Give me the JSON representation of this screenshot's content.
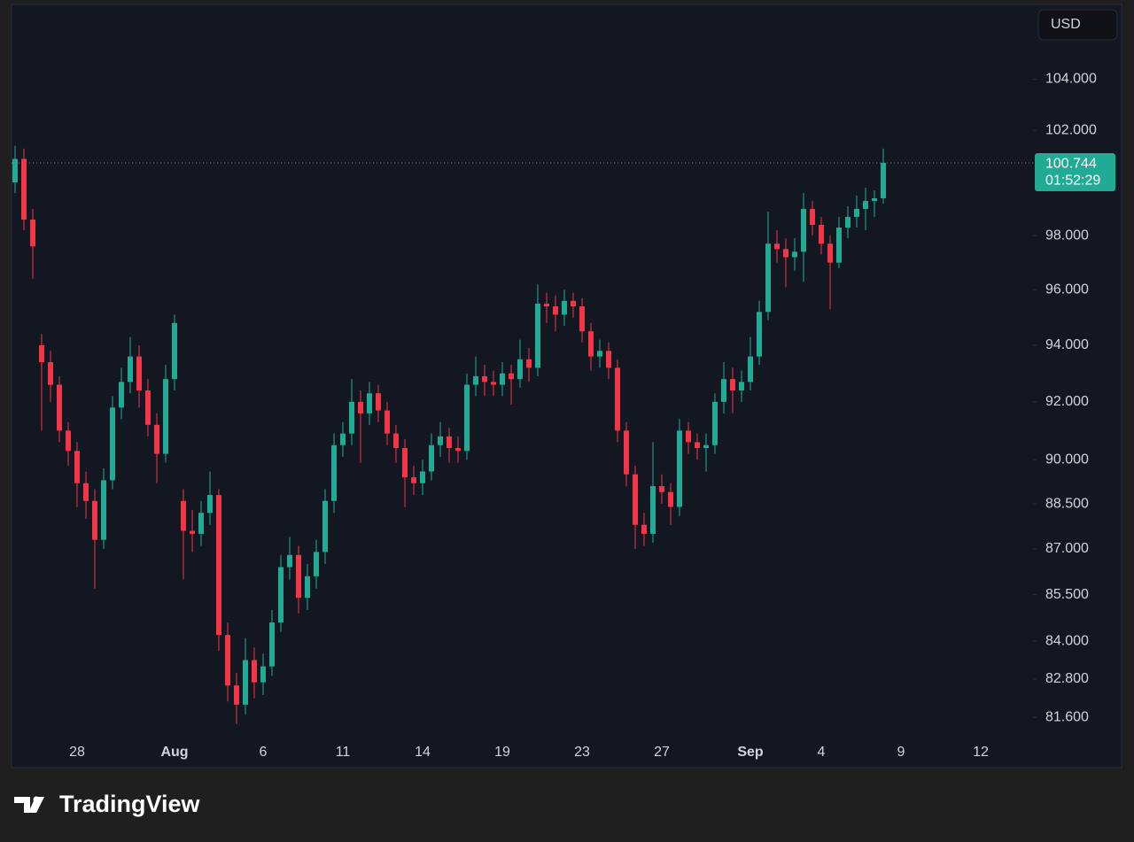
{
  "chart_data": {
    "type": "candlestick",
    "currency": "USD",
    "countdown": "01:52:29",
    "brand": "TradingView",
    "log_scale": true,
    "up_color": "#22ab94",
    "down_color": "#f23645",
    "ylim": [
      80.9,
      107.0
    ],
    "yticks": [
      {
        "value": 81.6,
        "label": "81.600"
      },
      {
        "value": 82.8,
        "label": "82.800"
      },
      {
        "value": 84,
        "label": "84.000"
      },
      {
        "value": 85.5,
        "label": "85.500"
      },
      {
        "value": 87,
        "label": "87.000"
      },
      {
        "value": 88.5,
        "label": "88.500"
      },
      {
        "value": 90,
        "label": "90.000"
      },
      {
        "value": 92,
        "label": "92.000"
      },
      {
        "value": 94,
        "label": "94.000"
      },
      {
        "value": 96,
        "label": "96.000"
      },
      {
        "value": 98,
        "label": "98.000"
      },
      {
        "value": 102,
        "label": "102.000"
      },
      {
        "value": 104,
        "label": "104.000"
      }
    ],
    "categories": [
      null,
      null,
      null,
      null,
      null,
      null,
      null,
      "28",
      null,
      null,
      null,
      null,
      null,
      null,
      null,
      null,
      null,
      null,
      "Aug",
      null,
      null,
      null,
      null,
      null,
      null,
      null,
      null,
      null,
      "6",
      null,
      null,
      null,
      null,
      null,
      null,
      null,
      null,
      "11",
      null,
      null,
      null,
      null,
      null,
      null,
      null,
      null,
      "14",
      null,
      null,
      null,
      null,
      null,
      null,
      null,
      null,
      "19",
      null,
      null,
      null,
      null,
      null,
      null,
      null,
      null,
      "23",
      null,
      null,
      null,
      null,
      null,
      null,
      null,
      null,
      "27",
      null,
      null,
      null,
      null,
      null,
      null,
      null,
      null,
      null,
      "Sep",
      null,
      null,
      null,
      null,
      null,
      null,
      null,
      "4",
      null,
      null,
      null,
      null,
      null,
      null,
      null,
      null,
      "9",
      null,
      null,
      null,
      null,
      null,
      null,
      null,
      null,
      "12",
      null,
      null,
      null,
      null,
      null
    ],
    "ohlc": [
      [
        100.0,
        101.4,
        99.6,
        100.9
      ],
      [
        100.9,
        101.3,
        98.2,
        98.6
      ],
      [
        98.6,
        99.0,
        96.4,
        97.6
      ],
      [
        94.0,
        94.4,
        91.0,
        93.4
      ],
      [
        93.4,
        93.8,
        92.0,
        92.6
      ],
      [
        92.6,
        92.9,
        90.6,
        91.0
      ],
      [
        91.0,
        91.3,
        89.8,
        90.3
      ],
      [
        90.3,
        90.6,
        88.4,
        89.2
      ],
      [
        89.2,
        89.6,
        88.0,
        88.6
      ],
      [
        88.6,
        89.0,
        85.7,
        87.3
      ],
      [
        87.3,
        89.7,
        87.0,
        89.3
      ],
      [
        89.3,
        92.2,
        89.0,
        91.8
      ],
      [
        91.8,
        93.2,
        91.4,
        92.7
      ],
      [
        92.7,
        94.3,
        92.3,
        93.6
      ],
      [
        93.6,
        94.0,
        91.8,
        92.4
      ],
      [
        92.4,
        92.8,
        90.8,
        91.2
      ],
      [
        91.2,
        91.6,
        89.2,
        90.2
      ],
      [
        90.2,
        93.3,
        89.9,
        92.8
      ],
      [
        92.8,
        95.1,
        92.4,
        94.8
      ],
      [
        88.6,
        89.0,
        86.0,
        87.6
      ],
      [
        87.6,
        88.3,
        86.9,
        87.5
      ],
      [
        87.5,
        88.6,
        87.1,
        88.2
      ],
      [
        88.2,
        89.6,
        87.8,
        88.8
      ],
      [
        88.8,
        89.0,
        83.7,
        84.2
      ],
      [
        84.2,
        84.6,
        82.1,
        82.6
      ],
      [
        82.6,
        83.0,
        81.4,
        82.0
      ],
      [
        82.0,
        84.1,
        81.7,
        83.4
      ],
      [
        83.4,
        83.8,
        82.2,
        82.7
      ],
      [
        82.7,
        83.6,
        82.3,
        83.2
      ],
      [
        83.2,
        85.0,
        82.9,
        84.6
      ],
      [
        84.6,
        86.8,
        84.3,
        86.4
      ],
      [
        86.4,
        87.4,
        86.0,
        86.8
      ],
      [
        86.8,
        87.1,
        84.9,
        85.4
      ],
      [
        85.4,
        86.5,
        85.0,
        86.1
      ],
      [
        86.1,
        87.3,
        85.7,
        86.9
      ],
      [
        86.9,
        89.0,
        86.5,
        88.6
      ],
      [
        88.6,
        90.9,
        88.2,
        90.5
      ],
      [
        90.5,
        91.3,
        90.1,
        90.9
      ],
      [
        90.9,
        92.8,
        90.5,
        92.0
      ],
      [
        92.0,
        92.4,
        89.9,
        91.6
      ],
      [
        91.6,
        92.7,
        91.2,
        92.3
      ],
      [
        92.3,
        92.6,
        91.3,
        91.7
      ],
      [
        91.7,
        92.0,
        90.5,
        90.9
      ],
      [
        90.9,
        91.2,
        89.9,
        90.4
      ],
      [
        90.4,
        90.7,
        88.4,
        89.4
      ],
      [
        89.4,
        89.8,
        88.8,
        89.2
      ],
      [
        89.2,
        90.0,
        88.8,
        89.6
      ],
      [
        89.6,
        90.9,
        89.3,
        90.5
      ],
      [
        90.5,
        91.3,
        90.1,
        90.8
      ],
      [
        90.8,
        91.1,
        89.9,
        90.4
      ],
      [
        90.4,
        90.8,
        89.9,
        90.3
      ],
      [
        90.3,
        93.0,
        90.0,
        92.6
      ],
      [
        92.6,
        93.6,
        92.2,
        92.9
      ],
      [
        92.9,
        93.3,
        92.2,
        92.7
      ],
      [
        92.7,
        93.1,
        92.2,
        92.6
      ],
      [
        92.6,
        93.4,
        92.2,
        93.0
      ],
      [
        93.0,
        93.3,
        91.9,
        92.8
      ],
      [
        92.8,
        94.2,
        92.5,
        93.5
      ],
      [
        93.5,
        93.9,
        92.7,
        93.2
      ],
      [
        93.2,
        96.2,
        92.9,
        95.5
      ],
      [
        95.5,
        95.9,
        94.8,
        95.4
      ],
      [
        95.4,
        95.8,
        94.5,
        95.1
      ],
      [
        95.1,
        96.0,
        94.7,
        95.6
      ],
      [
        95.6,
        95.9,
        95.0,
        95.4
      ],
      [
        95.4,
        95.7,
        94.1,
        94.5
      ],
      [
        94.5,
        94.8,
        93.1,
        93.6
      ],
      [
        93.6,
        94.2,
        93.2,
        93.8
      ],
      [
        93.8,
        94.1,
        92.8,
        93.2
      ],
      [
        93.2,
        93.5,
        90.6,
        91.0
      ],
      [
        91.0,
        91.3,
        89.1,
        89.5
      ],
      [
        89.5,
        89.8,
        87.0,
        87.8
      ],
      [
        87.8,
        88.2,
        87.1,
        87.5
      ],
      [
        87.5,
        90.6,
        87.2,
        89.1
      ],
      [
        89.1,
        89.5,
        88.5,
        88.9
      ],
      [
        88.9,
        89.2,
        87.8,
        88.4
      ],
      [
        88.4,
        91.4,
        88.1,
        91.0
      ],
      [
        91.0,
        91.3,
        90.2,
        90.6
      ],
      [
        90.6,
        90.9,
        90.0,
        90.4
      ],
      [
        90.4,
        90.9,
        89.6,
        90.5
      ],
      [
        90.5,
        92.3,
        90.2,
        92.0
      ],
      [
        92.0,
        93.4,
        91.6,
        92.8
      ],
      [
        92.8,
        93.2,
        91.6,
        92.4
      ],
      [
        92.4,
        93.1,
        92.0,
        92.7
      ],
      [
        92.7,
        94.3,
        92.4,
        93.6
      ],
      [
        93.6,
        95.6,
        93.3,
        95.2
      ],
      [
        95.2,
        98.9,
        94.9,
        97.7
      ],
      [
        97.7,
        98.2,
        97.0,
        97.5
      ],
      [
        97.5,
        97.9,
        96.1,
        97.2
      ],
      [
        97.2,
        97.9,
        96.7,
        97.4
      ],
      [
        97.4,
        99.6,
        96.3,
        99.0
      ],
      [
        99.0,
        99.3,
        98.0,
        98.4
      ],
      [
        98.4,
        98.7,
        97.3,
        97.7
      ],
      [
        97.7,
        98.0,
        95.3,
        97.0
      ],
      [
        97.0,
        98.7,
        96.8,
        98.3
      ],
      [
        98.3,
        99.1,
        97.9,
        98.7
      ],
      [
        98.7,
        99.5,
        98.3,
        99.0
      ],
      [
        99.0,
        99.8,
        98.2,
        99.3
      ],
      [
        99.3,
        99.7,
        98.7,
        99.4
      ],
      [
        99.4,
        101.3,
        99.2,
        100.744
      ]
    ]
  }
}
